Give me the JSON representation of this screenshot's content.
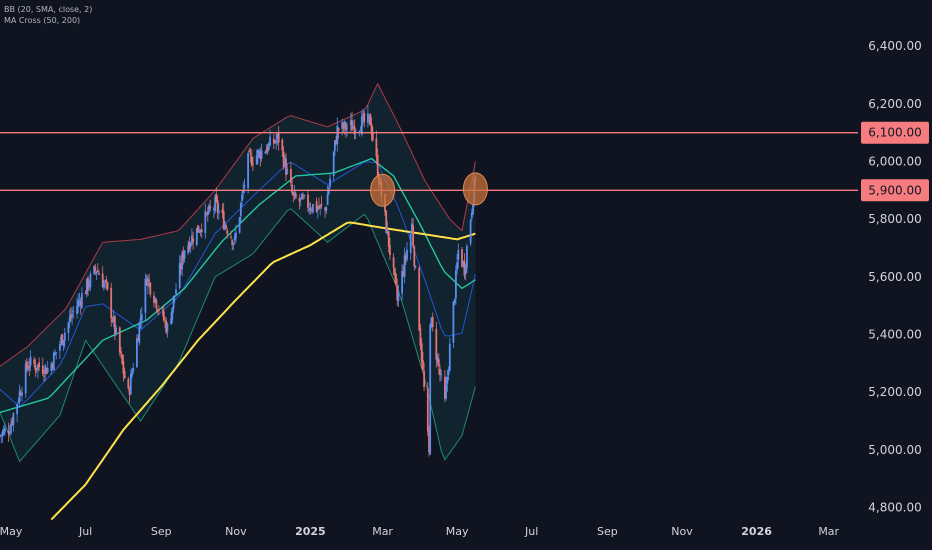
{
  "indicators": [
    {
      "label": "BB (20, SMA, close, 2)"
    },
    {
      "label": "MA Cross (50, 200)"
    }
  ],
  "colors": {
    "background": "#0f1420",
    "up_candle": "#5b8def",
    "down_candle": "#e57373",
    "bb_upper": "#b03a48",
    "bb_middle": "#2962ff",
    "bb_lower": "#1f8a70",
    "bb_fill": "#13303a",
    "ma50": "#26c6a0",
    "ma200": "#ffe14a",
    "level_line": "#f77c80",
    "level_label_bg": "#f77c80",
    "marker_fill": "#c8703a",
    "axis_text": "#d1d4dc"
  },
  "chart_data": {
    "type": "candlestick",
    "ylim": [
      4750,
      6560
    ],
    "xlim": [
      "2024-04-22",
      "2026-03-25"
    ],
    "y_ticks": [
      "6,400.00",
      "6,200.00",
      "6,000.00",
      "5,800.00",
      "5,600.00",
      "5,400.00",
      "5,200.00",
      "5,000.00",
      "4,800.00"
    ],
    "y_tick_values": [
      6400,
      6200,
      6000,
      5800,
      5600,
      5400,
      5200,
      5000,
      4800
    ],
    "x_ticks": [
      {
        "label": "May",
        "date": "2024-05-01"
      },
      {
        "label": "Jul",
        "date": "2024-07-01"
      },
      {
        "label": "Sep",
        "date": "2024-09-01"
      },
      {
        "label": "Nov",
        "date": "2024-11-01"
      },
      {
        "label": "2025",
        "date": "2025-01-01"
      },
      {
        "label": "Mar",
        "date": "2025-03-01"
      },
      {
        "label": "May",
        "date": "2025-05-01"
      },
      {
        "label": "Jul",
        "date": "2025-07-01"
      },
      {
        "label": "Sep",
        "date": "2025-09-01"
      },
      {
        "label": "Nov",
        "date": "2025-11-01"
      },
      {
        "label": "2026",
        "date": "2026-01-01"
      },
      {
        "label": "Mar",
        "date": "2026-03-01"
      }
    ],
    "horizontal_levels": [
      {
        "value": 6100,
        "label": "6,100.00"
      },
      {
        "value": 5900,
        "label": "5,900.00"
      }
    ],
    "markers": [
      {
        "date": "2025-03-01",
        "value": 5900
      },
      {
        "date": "2025-05-16",
        "value": 5905
      }
    ],
    "close_keypoints": [
      [
        "2024-04-22",
        5050
      ],
      [
        "2024-04-30",
        5080
      ],
      [
        "2024-05-15",
        5300
      ],
      [
        "2024-06-01",
        5280
      ],
      [
        "2024-06-20",
        5470
      ],
      [
        "2024-07-10",
        5630
      ],
      [
        "2024-07-18",
        5560
      ],
      [
        "2024-08-05",
        5190
      ],
      [
        "2024-08-20",
        5600
      ],
      [
        "2024-09-06",
        5420
      ],
      [
        "2024-09-20",
        5700
      ],
      [
        "2024-10-15",
        5850
      ],
      [
        "2024-10-31",
        5720
      ],
      [
        "2024-11-11",
        6000
      ],
      [
        "2024-12-06",
        6080
      ],
      [
        "2024-12-18",
        5870
      ],
      [
        "2025-01-13",
        5830
      ],
      [
        "2025-01-23",
        6110
      ],
      [
        "2025-02-19",
        6140
      ],
      [
        "2025-03-13",
        5520
      ],
      [
        "2025-03-25",
        5780
      ],
      [
        "2025-04-08",
        4980
      ],
      [
        "2025-04-09",
        5460
      ],
      [
        "2025-04-21",
        5160
      ],
      [
        "2025-05-02",
        5690
      ],
      [
        "2025-05-07",
        5630
      ],
      [
        "2025-05-16",
        5950
      ]
    ],
    "bb_upper_keypoints": [
      [
        "2024-04-22",
        5290
      ],
      [
        "2024-05-15",
        5360
      ],
      [
        "2024-06-15",
        5490
      ],
      [
        "2024-07-15",
        5720
      ],
      [
        "2024-08-15",
        5730
      ],
      [
        "2024-09-15",
        5760
      ],
      [
        "2024-10-15",
        5900
      ],
      [
        "2024-11-15",
        6080
      ],
      [
        "2024-12-15",
        6160
      ],
      [
        "2025-01-15",
        6120
      ],
      [
        "2025-02-15",
        6180
      ],
      [
        "2025-02-25",
        6270
      ],
      [
        "2025-03-15",
        6120
      ],
      [
        "2025-04-05",
        5930
      ],
      [
        "2025-04-25",
        5800
      ],
      [
        "2025-05-05",
        5760
      ],
      [
        "2025-05-16",
        6000
      ]
    ],
    "bb_lower_keypoints": [
      [
        "2024-04-22",
        5130
      ],
      [
        "2024-05-08",
        4960
      ],
      [
        "2024-06-10",
        5120
      ],
      [
        "2024-07-01",
        5380
      ],
      [
        "2024-08-15",
        5100
      ],
      [
        "2024-09-15",
        5300
      ],
      [
        "2024-10-15",
        5600
      ],
      [
        "2024-11-15",
        5680
      ],
      [
        "2024-12-15",
        5840
      ],
      [
        "2025-01-15",
        5720
      ],
      [
        "2025-02-15",
        5820
      ],
      [
        "2025-03-15",
        5540
      ],
      [
        "2025-04-05",
        5240
      ],
      [
        "2025-04-20",
        4960
      ],
      [
        "2025-05-05",
        5050
      ],
      [
        "2025-05-16",
        5220
      ]
    ],
    "ma50_keypoints": [
      [
        "2024-04-22",
        5130
      ],
      [
        "2024-06-01",
        5180
      ],
      [
        "2024-07-15",
        5380
      ],
      [
        "2024-08-20",
        5450
      ],
      [
        "2024-09-20",
        5560
      ],
      [
        "2024-10-20",
        5720
      ],
      [
        "2024-11-20",
        5850
      ],
      [
        "2024-12-20",
        5950
      ],
      [
        "2025-01-20",
        5960
      ],
      [
        "2025-02-20",
        6010
      ],
      [
        "2025-03-10",
        5950
      ],
      [
        "2025-04-01",
        5780
      ],
      [
        "2025-04-20",
        5620
      ],
      [
        "2025-05-05",
        5560
      ],
      [
        "2025-05-16",
        5590
      ]
    ],
    "ma200_keypoints": [
      [
        "2024-06-01",
        4750
      ],
      [
        "2024-07-01",
        4880
      ],
      [
        "2024-08-01",
        5070
      ],
      [
        "2024-09-01",
        5220
      ],
      [
        "2024-10-01",
        5380
      ],
      [
        "2024-11-01",
        5520
      ],
      [
        "2024-12-01",
        5650
      ],
      [
        "2025-01-01",
        5710
      ],
      [
        "2025-02-01",
        5790
      ],
      [
        "2025-03-01",
        5770
      ],
      [
        "2025-04-01",
        5750
      ],
      [
        "2025-05-01",
        5730
      ],
      [
        "2025-05-16",
        5750
      ]
    ]
  }
}
